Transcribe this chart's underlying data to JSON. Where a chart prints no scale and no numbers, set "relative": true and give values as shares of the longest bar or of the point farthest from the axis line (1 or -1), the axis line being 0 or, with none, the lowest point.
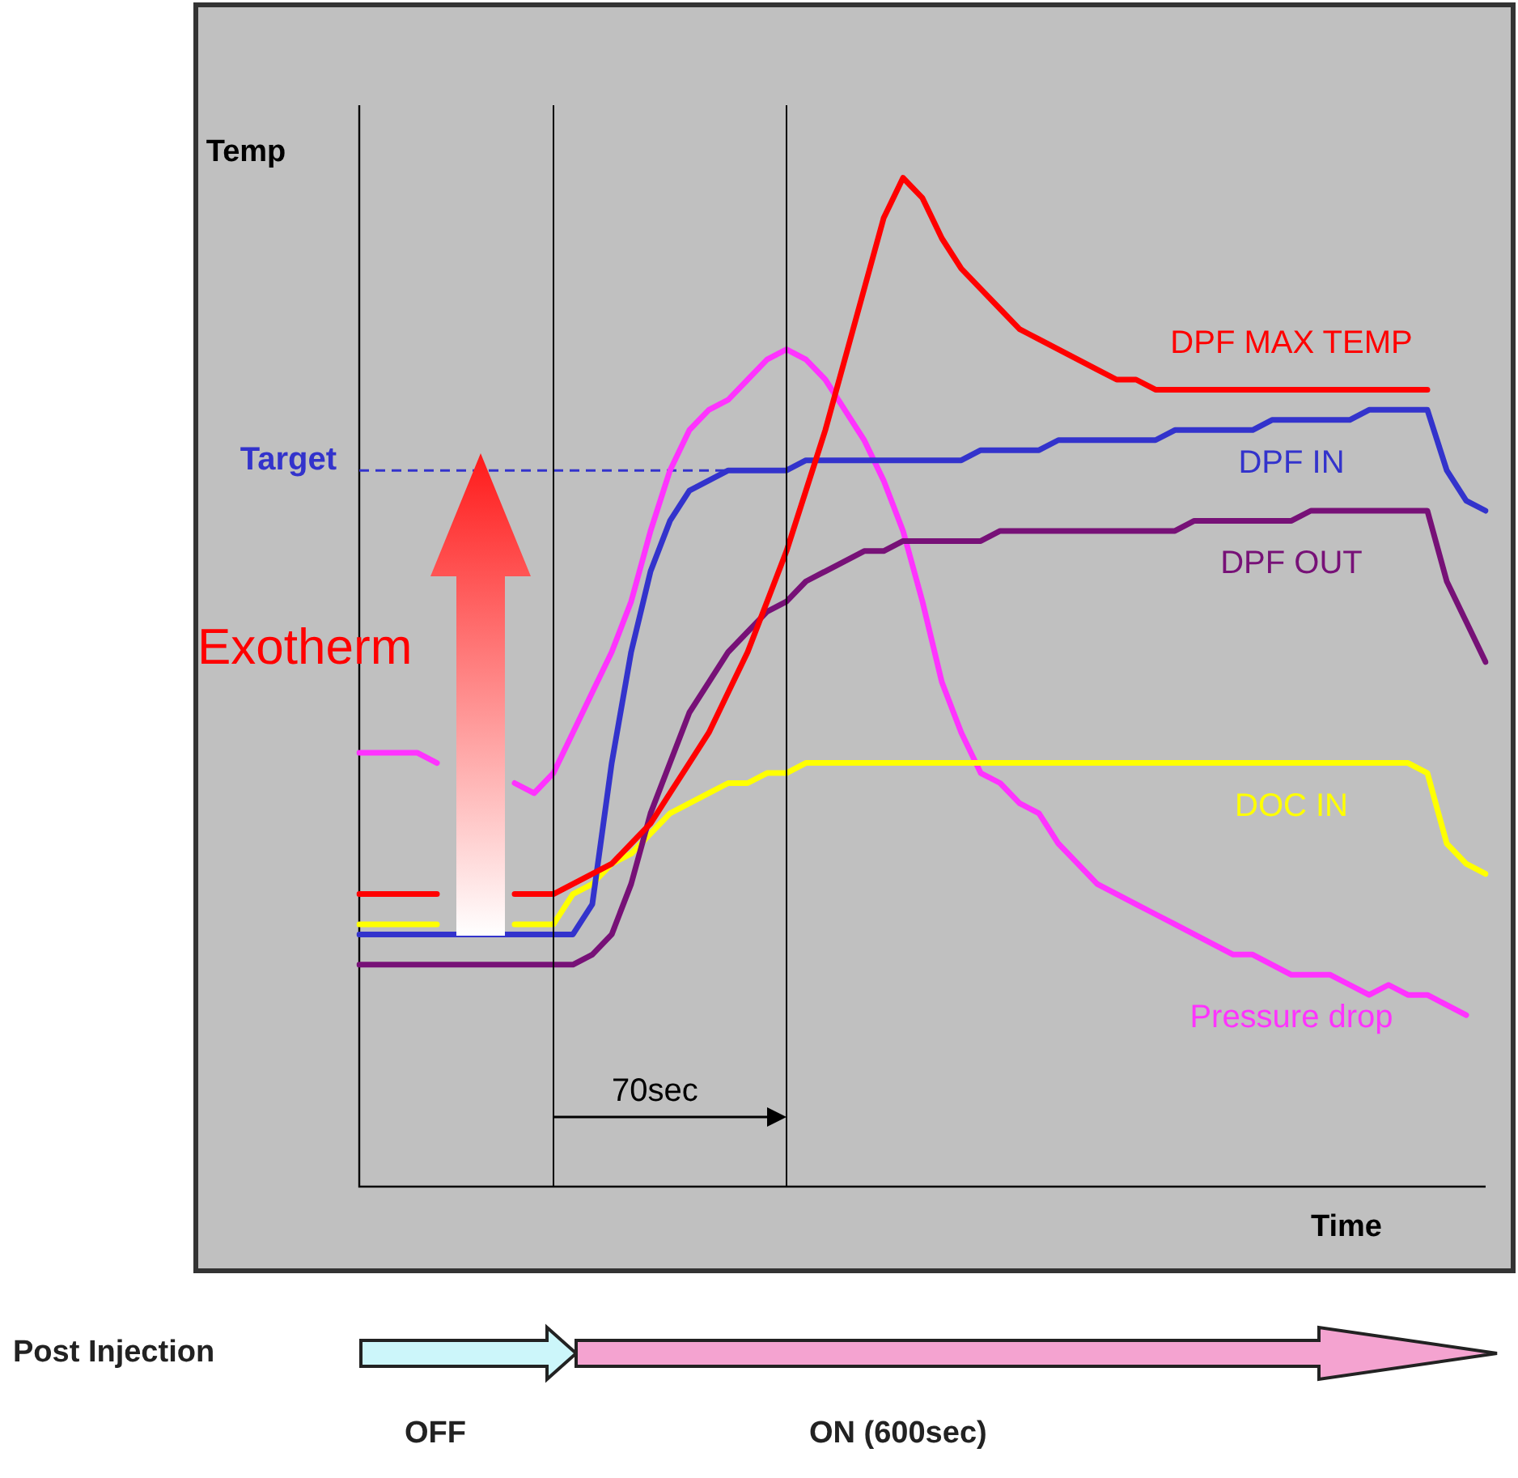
{
  "chart_data": {
    "type": "line",
    "relative": true,
    "xlabel": "Time",
    "ylabel": "Temp",
    "categories": [
      null,
      null,
      null,
      null,
      null,
      null,
      null,
      null,
      null,
      null,
      null,
      null,
      null,
      null,
      null,
      null,
      null,
      null,
      null,
      null,
      null,
      null,
      null,
      null,
      null,
      null,
      null,
      null,
      null,
      null,
      null,
      null,
      null,
      null,
      null,
      null,
      null,
      null,
      null,
      null,
      null,
      null,
      null,
      null,
      null,
      null,
      null,
      null,
      null,
      null,
      null,
      null,
      null,
      null,
      null,
      null,
      null,
      null,
      null
    ],
    "series": [
      {
        "name": "DPF MAX TEMP",
        "color": "#ff0000",
        "values": [
          0.29,
          0.29,
          0.29,
          0.29,
          0.29,
          null,
          null,
          null,
          0.29,
          0.29,
          0.29,
          0.3,
          0.31,
          0.32,
          0.34,
          0.36,
          0.39,
          0.42,
          0.45,
          0.49,
          0.53,
          0.58,
          0.63,
          0.69,
          0.75,
          0.82,
          0.89,
          0.96,
          1,
          0.98,
          0.94,
          0.91,
          0.89,
          0.87,
          0.85,
          0.84,
          0.83,
          0.82,
          0.81,
          0.8,
          0.8,
          0.79,
          0.79,
          0.79,
          0.79,
          0.79,
          0.79,
          0.79,
          0.79,
          0.79,
          0.79,
          0.79,
          0.79,
          0.79,
          0.79,
          0.79,
          null,
          null,
          null
        ]
      },
      {
        "name": "DPF IN",
        "color": "#3333cc",
        "values": [
          0.25,
          0.25,
          0.25,
          0.25,
          0.25,
          0.25,
          0.25,
          0.25,
          0.25,
          0.25,
          0.25,
          0.25,
          0.28,
          0.42,
          0.53,
          0.61,
          0.66,
          0.69,
          0.7,
          0.71,
          0.71,
          0.71,
          0.71,
          0.72,
          0.72,
          0.72,
          0.72,
          0.72,
          0.72,
          0.72,
          0.72,
          0.72,
          0.73,
          0.73,
          0.73,
          0.73,
          0.74,
          0.74,
          0.74,
          0.74,
          0.74,
          0.74,
          0.75,
          0.75,
          0.75,
          0.75,
          0.75,
          0.76,
          0.76,
          0.76,
          0.76,
          0.76,
          0.77,
          0.77,
          0.77,
          0.77,
          0.71,
          0.68,
          0.67
        ]
      },
      {
        "name": "DPF OUT",
        "color": "#771177",
        "values": [
          0.22,
          0.22,
          0.22,
          0.22,
          0.22,
          0.22,
          0.22,
          0.22,
          0.22,
          0.22,
          0.22,
          0.22,
          0.23,
          0.25,
          0.3,
          0.37,
          0.42,
          0.47,
          0.5,
          0.53,
          0.55,
          0.57,
          0.58,
          0.6,
          0.61,
          0.62,
          0.63,
          0.63,
          0.64,
          0.64,
          0.64,
          0.64,
          0.64,
          0.65,
          0.65,
          0.65,
          0.65,
          0.65,
          0.65,
          0.65,
          0.65,
          0.65,
          0.65,
          0.66,
          0.66,
          0.66,
          0.66,
          0.66,
          0.66,
          0.67,
          0.67,
          0.67,
          0.67,
          0.67,
          0.67,
          0.67,
          0.6,
          0.56,
          0.52
        ]
      },
      {
        "name": "DOC IN",
        "color": "#ffff00",
        "values": [
          0.26,
          0.26,
          0.26,
          0.26,
          0.26,
          null,
          null,
          null,
          0.26,
          0.26,
          0.26,
          0.29,
          0.3,
          0.32,
          0.33,
          0.35,
          0.37,
          0.38,
          0.39,
          0.4,
          0.4,
          0.41,
          0.41,
          0.42,
          0.42,
          0.42,
          0.42,
          0.42,
          0.42,
          0.42,
          0.42,
          0.42,
          0.42,
          0.42,
          0.42,
          0.42,
          0.42,
          0.42,
          0.42,
          0.42,
          0.42,
          0.42,
          0.42,
          0.42,
          0.42,
          0.42,
          0.42,
          0.42,
          0.42,
          0.42,
          0.42,
          0.42,
          0.42,
          0.42,
          0.42,
          0.41,
          0.34,
          0.32,
          0.31
        ]
      },
      {
        "name": "Pressure drop",
        "color": "#ff33ff",
        "values": [
          0.43,
          0.43,
          0.43,
          0.43,
          0.42,
          null,
          null,
          null,
          0.4,
          0.39,
          0.41,
          0.45,
          0.49,
          0.53,
          0.58,
          0.65,
          0.71,
          0.75,
          0.77,
          0.78,
          0.8,
          0.82,
          0.83,
          0.82,
          0.8,
          0.77,
          0.74,
          0.7,
          0.65,
          0.58,
          0.5,
          0.45,
          0.41,
          0.4,
          0.38,
          0.37,
          0.34,
          0.32,
          0.3,
          0.29,
          0.28,
          0.27,
          0.26,
          0.25,
          0.24,
          0.23,
          0.23,
          0.22,
          0.21,
          0.21,
          0.21,
          0.2,
          0.19,
          0.2,
          0.19,
          0.19,
          0.18,
          0.17,
          null
        ]
      }
    ],
    "ref_lines": [
      {
        "axis": "y",
        "value": 0.71,
        "label": "Target",
        "color": "#3333cc",
        "line_style": "dashed"
      }
    ],
    "annotations": [
      "Exotherm",
      "70sec",
      "Post Injection",
      "OFF",
      "ON (600sec)"
    ]
  }
}
